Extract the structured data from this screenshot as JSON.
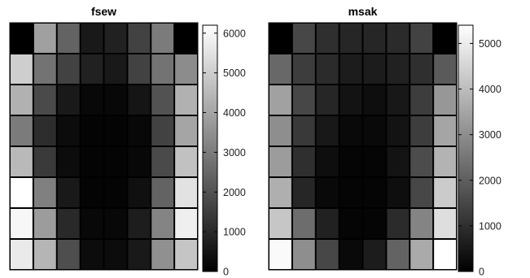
{
  "chart_data": [
    {
      "type": "heatmap",
      "title": "fsew",
      "colormap": "gray",
      "clim": [
        0,
        6200
      ],
      "colorbar_ticks": [
        0,
        1000,
        2000,
        3000,
        4000,
        5000,
        6000
      ],
      "colorbar_tick_labels": [
        "0",
        "1000",
        "2000",
        "3000",
        "4000",
        "5000",
        "6000"
      ],
      "rows": 8,
      "cols": 8,
      "values": [
        [
          0,
          3900,
          2400,
          600,
          800,
          1600,
          3000,
          0
        ],
        [
          5000,
          2800,
          1600,
          800,
          600,
          1600,
          2800,
          3400
        ],
        [
          4300,
          1800,
          600,
          200,
          200,
          500,
          2000,
          4300
        ],
        [
          3000,
          1100,
          300,
          100,
          100,
          200,
          1600,
          4000
        ],
        [
          4500,
          1400,
          300,
          100,
          100,
          200,
          1800,
          4700
        ],
        [
          6200,
          3100,
          600,
          100,
          100,
          400,
          2400,
          5500
        ],
        [
          6000,
          3800,
          1000,
          200,
          200,
          700,
          3200,
          5800
        ],
        [
          5700,
          4400,
          1900,
          300,
          300,
          600,
          3500,
          4800
        ]
      ]
    },
    {
      "type": "heatmap",
      "title": "msak",
      "colormap": "gray",
      "clim": [
        0,
        5400
      ],
      "colorbar_ticks": [
        0,
        1000,
        2000,
        3000,
        4000,
        5000
      ],
      "colorbar_tick_labels": [
        "0",
        "1000",
        "2000",
        "3000",
        "4000",
        "5000"
      ],
      "rows": 8,
      "cols": 8,
      "values": [
        [
          0,
          1500,
          1000,
          800,
          800,
          900,
          1400,
          0
        ],
        [
          2200,
          1300,
          900,
          600,
          600,
          700,
          1000,
          1900
        ],
        [
          3400,
          1500,
          800,
          400,
          300,
          500,
          1300,
          3200
        ],
        [
          3000,
          1200,
          500,
          200,
          200,
          400,
          1300,
          3500
        ],
        [
          3300,
          1000,
          300,
          100,
          100,
          400,
          1600,
          3800
        ],
        [
          3700,
          800,
          200,
          100,
          100,
          300,
          1500,
          4300
        ],
        [
          4200,
          2300,
          700,
          100,
          100,
          900,
          2800,
          4700
        ],
        [
          5300,
          3000,
          1500,
          200,
          600,
          2100,
          3600,
          5400
        ]
      ]
    }
  ]
}
